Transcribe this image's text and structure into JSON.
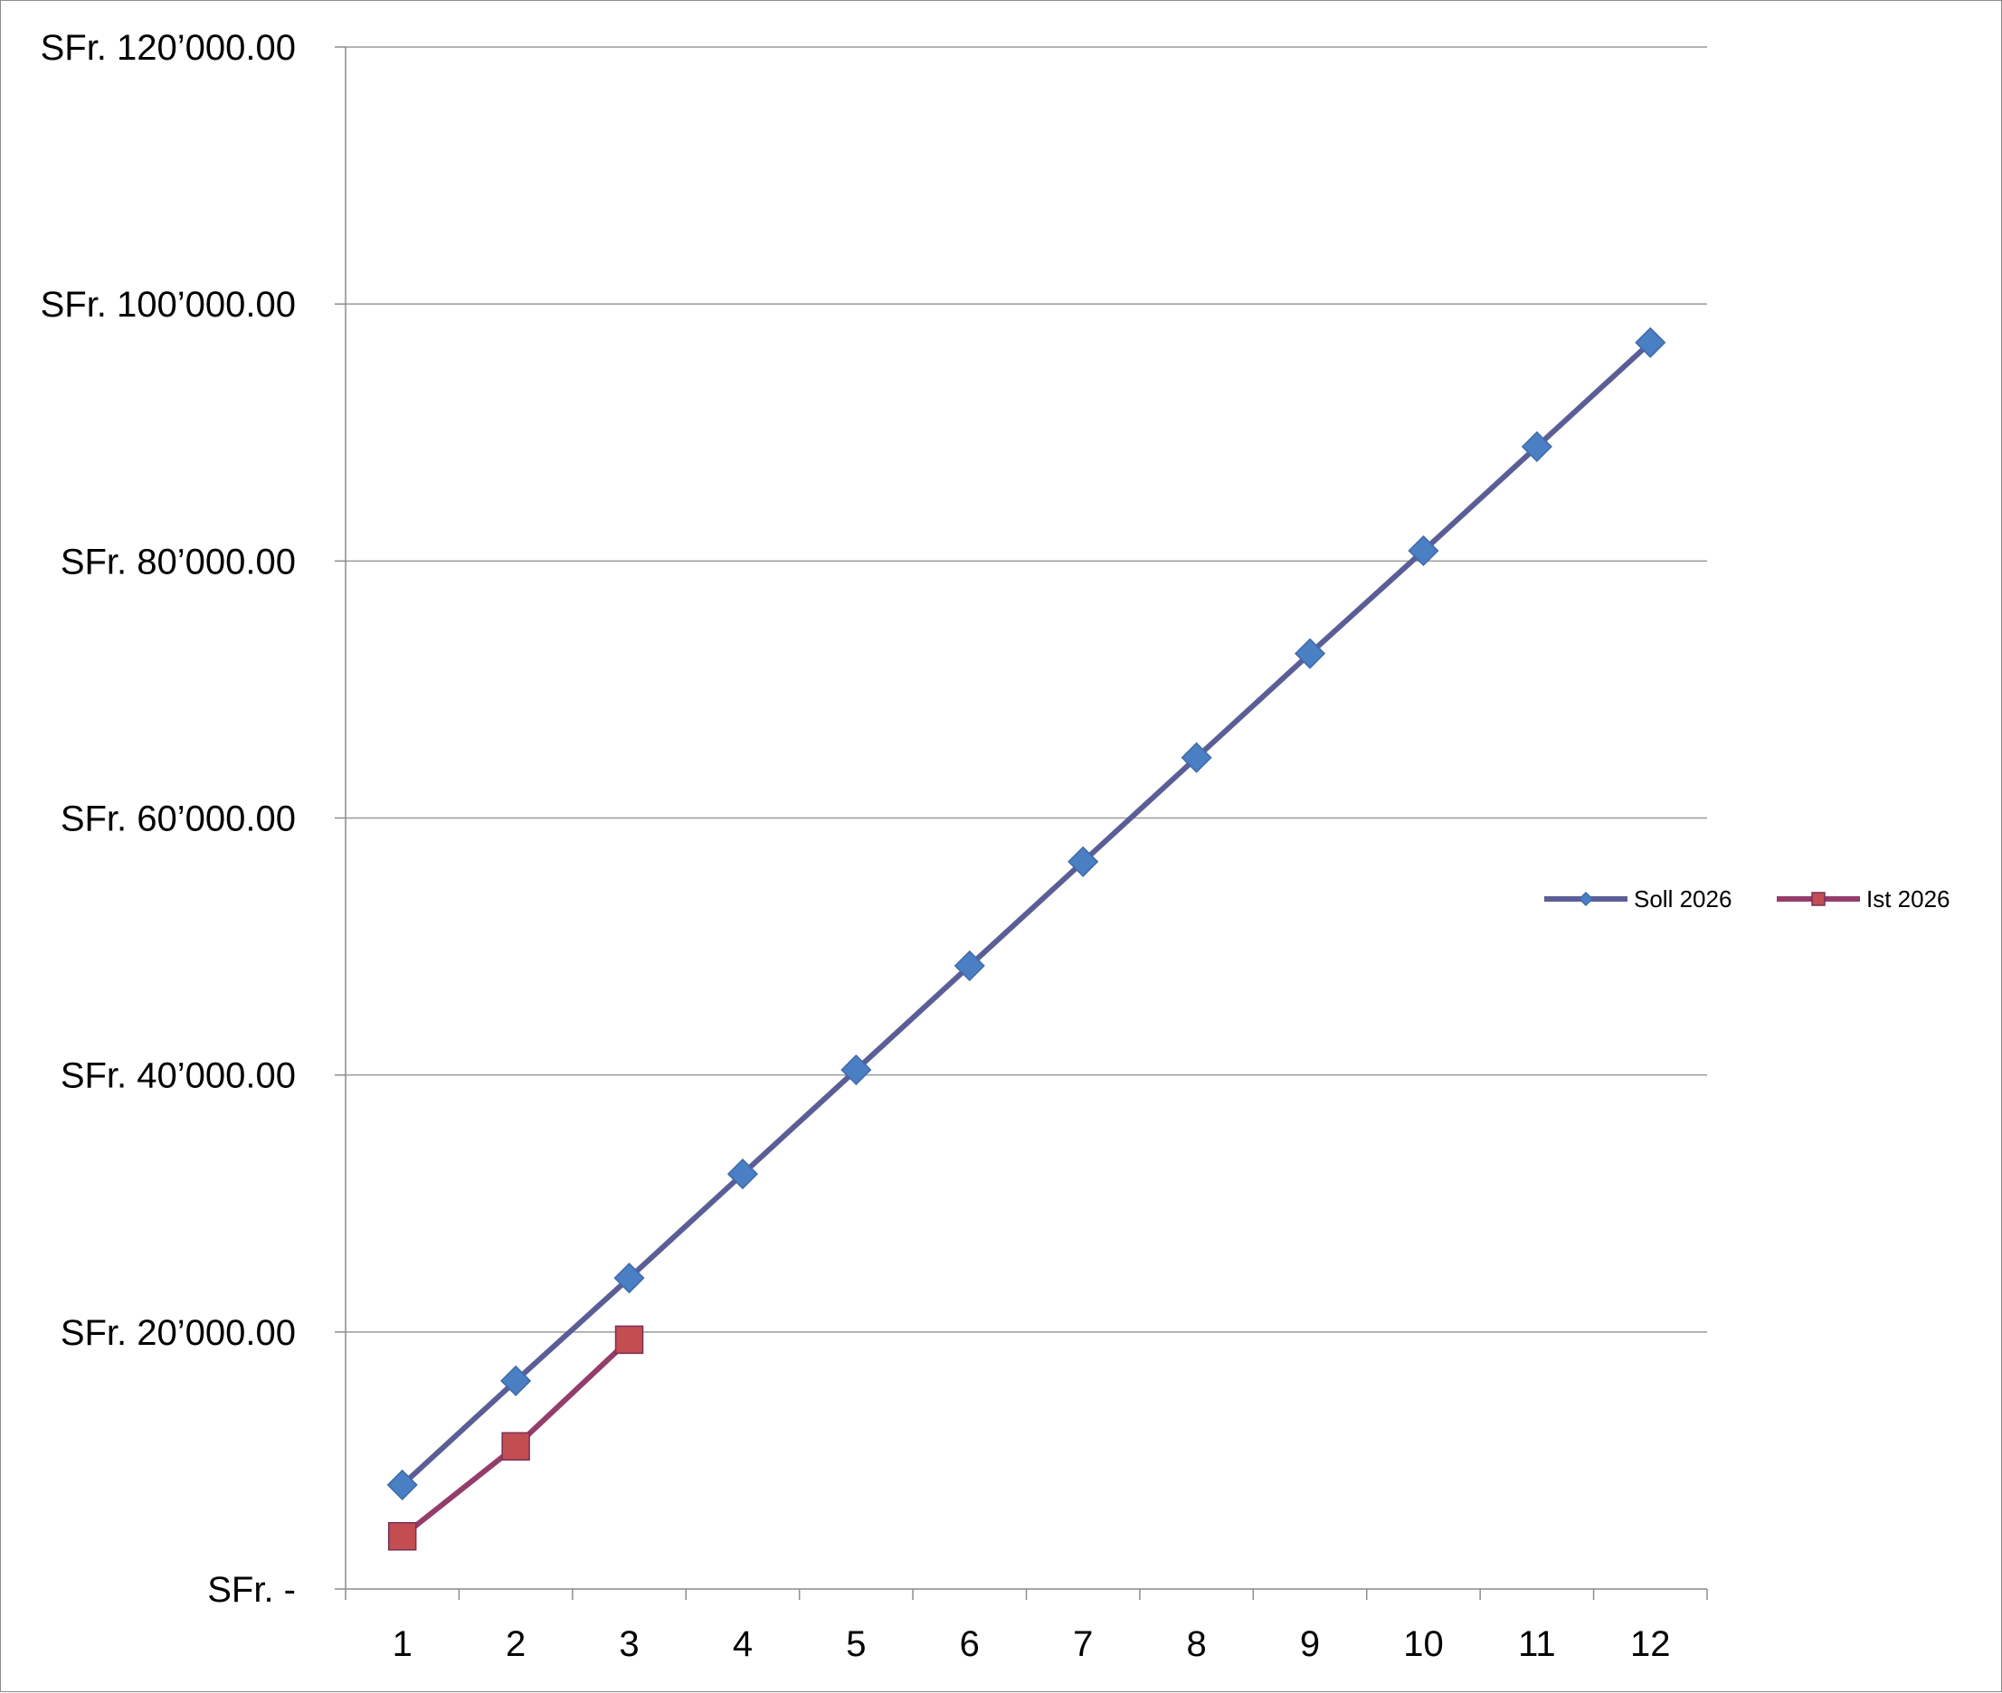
{
  "chart_data": {
    "type": "line",
    "title": "",
    "xlabel": "",
    "ylabel": "",
    "categories": [
      "1",
      "2",
      "3",
      "4",
      "5",
      "6",
      "7",
      "8",
      "9",
      "10",
      "11",
      "12"
    ],
    "ylim": [
      0,
      120000
    ],
    "y_ticks": [
      {
        "value": 0,
        "label": "SFr.     -"
      },
      {
        "value": 20000,
        "label": "SFr. 20’000.00"
      },
      {
        "value": 40000,
        "label": "SFr. 40’000.00"
      },
      {
        "value": 60000,
        "label": "SFr. 60’000.00"
      },
      {
        "value": 80000,
        "label": "SFr. 80’000.00"
      },
      {
        "value": 100000,
        "label": "SFr. 100’000.00"
      },
      {
        "value": 120000,
        "label": "SFr. 120’000.00"
      }
    ],
    "grid": "horizontal",
    "legend_position": "right",
    "series": [
      {
        "name": "Soll 2026",
        "color": "#5b5e96",
        "marker": "diamond",
        "marker_color": "#4a7fc4",
        "values": [
          8100,
          16200,
          24200,
          32300,
          40400,
          48500,
          56600,
          64700,
          72800,
          80800,
          88900,
          97000
        ]
      },
      {
        "name": "Ist 2026",
        "color": "#943d6b",
        "marker": "square",
        "marker_color": "#c24e52",
        "values": [
          4100,
          11100,
          19400,
          null,
          null,
          null,
          null,
          null,
          null,
          null,
          null,
          null
        ]
      }
    ]
  }
}
